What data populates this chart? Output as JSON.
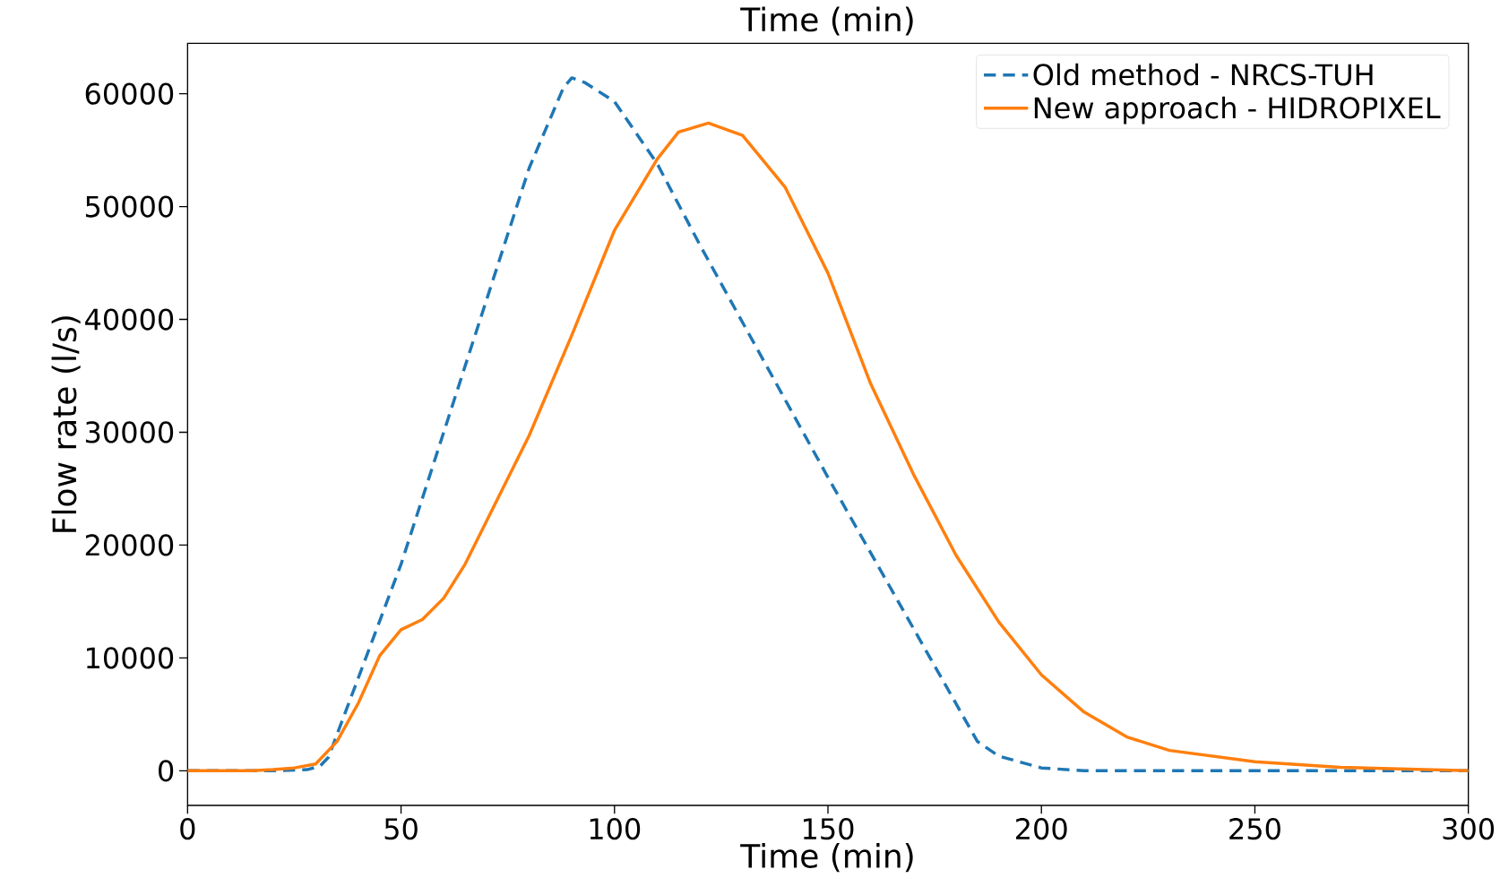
{
  "chart_data": {
    "type": "line",
    "xlabel": "Time (min)",
    "ylabel": "Flow rate (l/s)",
    "annotations": [
      "Time (min)"
    ],
    "xlim": [
      0,
      300
    ],
    "ylim": [
      -3070,
      64470
    ],
    "xticks": [
      0,
      50,
      100,
      150,
      200,
      250,
      300
    ],
    "yticks": [
      0,
      10000,
      20000,
      30000,
      40000,
      50000,
      60000
    ],
    "legend": "top right",
    "grid": false,
    "series": [
      {
        "name": "Old method - NRCS-TUH",
        "color": "#1f77b4",
        "line_style": "dashed",
        "x": [
          0,
          20,
          28,
          31,
          33,
          50,
          80,
          88,
          90,
          93,
          100,
          110,
          120,
          150,
          185,
          190,
          200,
          210,
          250,
          300
        ],
        "values": [
          0,
          0,
          100,
          400,
          1200,
          18300,
          53400,
          60500,
          61400,
          61000,
          59300,
          53800,
          46600,
          26000,
          2600,
          1300,
          250,
          0,
          0,
          0
        ]
      },
      {
        "name": "New approach - HIDROPIXEL",
        "color": "#ff7f0e",
        "line_style": "solid",
        "x": [
          0,
          15,
          20,
          25,
          30,
          35,
          40,
          45,
          50,
          55,
          60,
          65,
          70,
          80,
          90,
          100,
          110,
          115,
          122,
          130,
          140,
          150,
          160,
          170,
          180,
          190,
          200,
          210,
          220,
          230,
          250,
          270,
          300
        ],
        "values": [
          0,
          0,
          100,
          250,
          600,
          2600,
          6000,
          10200,
          12500,
          13400,
          15300,
          18300,
          22100,
          29700,
          38600,
          47900,
          54200,
          56600,
          57400,
          56300,
          51700,
          44100,
          34300,
          26300,
          19100,
          13200,
          8500,
          5200,
          3000,
          1800,
          800,
          300,
          0
        ]
      }
    ]
  }
}
